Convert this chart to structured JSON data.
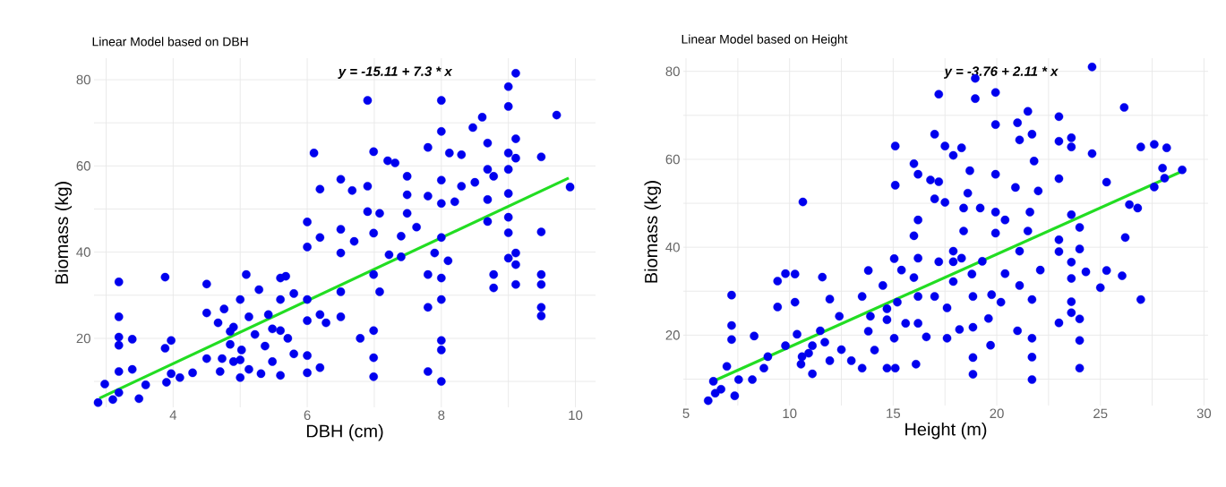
{
  "chart_data": [
    {
      "type": "scatter",
      "title": "Linear Model based on DBH",
      "xlabel": "DBH (cm)",
      "ylabel": "Biomass (kg)",
      "annotations": [
        "y = -15.11 + 7.3 * x"
      ],
      "grid": true,
      "xlim": [
        2.82,
        10.3
      ],
      "ylim": [
        4,
        85
      ],
      "xticks": [
        {
          "value": 3,
          "label": null
        },
        4,
        {
          "value": 5,
          "label": null
        },
        6,
        {
          "value": 7,
          "label": null
        },
        8,
        {
          "value": 9,
          "label": null
        },
        10
      ],
      "yticks": [
        {
          "value": 10,
          "label": null
        },
        20,
        {
          "value": 30,
          "label": null
        },
        40,
        {
          "value": 50,
          "label": null
        },
        60,
        {
          "value": 70,
          "label": null
        },
        80
      ],
      "series": [
        {
          "marker": "circle",
          "color": "#0000ee",
          "x": [
            2.88,
            2.98,
            3.1,
            3.19,
            3.19,
            3.19,
            3.19,
            3.19,
            3.19,
            3.39,
            3.39,
            3.49,
            3.59,
            3.88,
            3.88,
            3.97,
            3.97,
            3.9,
            4.1,
            4.29,
            4.5,
            4.5,
            4.5,
            4.67,
            4.7,
            4.76,
            4.85,
            4.9,
            5,
            5,
            5,
            5.09,
            5.13,
            5.22,
            5.28,
            5.31,
            5.42,
            5.48,
            5.6,
            5.6,
            5.6,
            5.68,
            5.71,
            5.8,
            5.8,
            6,
            6,
            6,
            6,
            6,
            6,
            6.1,
            6.19,
            6.19,
            6.19,
            6.19,
            6.28,
            6.5,
            6.5,
            6.5,
            6.5,
            6.5,
            6.67,
            6.7,
            6.79,
            6.9,
            6.9,
            6.9,
            6.99,
            6.99,
            6.99,
            6.99,
            6.99,
            6.99,
            7.08,
            7.08,
            7.2,
            7.31,
            7.22,
            7.49,
            7.49,
            7.4,
            7.4,
            7.49,
            7.63,
            7.8,
            7.8,
            7.8,
            7.8,
            7.8,
            7.9,
            8,
            8,
            8,
            8,
            8,
            8,
            8,
            8,
            8,
            8,
            8.12,
            8.1,
            8.2,
            8.3,
            8.3,
            8.5,
            8.47,
            8.61,
            8.69,
            8.69,
            8.69,
            8.69,
            8.78,
            8.78,
            8.78,
            9,
            9,
            9,
            9,
            9,
            9,
            9,
            9,
            9.11,
            9.11,
            9.11,
            9.11,
            9.11,
            9.11,
            9.49,
            9.49,
            9.49,
            9.49,
            9.49,
            9.49,
            9.72,
            9.92,
            4.9,
            5.02,
            5.13,
            5.37,
            5.48,
            5.6,
            4.73,
            4.85
          ],
          "values": [
            5.1,
            9.4,
            5.8,
            33.1,
            25,
            20.3,
            18.4,
            12.3,
            7.4,
            19.8,
            12.8,
            6,
            9.2,
            34.2,
            17.7,
            19.5,
            11.8,
            9.8,
            10.9,
            12,
            32.6,
            25.9,
            15.3,
            23.6,
            12.3,
            26.8,
            18.6,
            22.6,
            29,
            10.9,
            15,
            34.8,
            25,
            20.9,
            31.3,
            11.8,
            25.5,
            14.6,
            34,
            11.4,
            29,
            34.4,
            20,
            30.4,
            16.4,
            47,
            41.2,
            29,
            24.1,
            16,
            12,
            63,
            43.4,
            54.6,
            25.5,
            13.2,
            23.6,
            56.9,
            45.3,
            39.8,
            30.8,
            25,
            54.3,
            42.5,
            20,
            75.2,
            55.3,
            49.4,
            63.3,
            44.4,
            34.8,
            21.8,
            15.5,
            11.1,
            49,
            30.8,
            61.2,
            60.7,
            39.4,
            57.6,
            53.3,
            43.7,
            38.9,
            49,
            45.8,
            64.3,
            53,
            34.8,
            27.2,
            12.3,
            39.8,
            75.2,
            68,
            56.7,
            51.3,
            43.4,
            34,
            29,
            19.5,
            17.3,
            10,
            63,
            38,
            51.7,
            62.6,
            55.3,
            56.2,
            68.9,
            71.3,
            65.3,
            52.2,
            47.1,
            59.2,
            57.6,
            34.8,
            31.7,
            78.4,
            73.8,
            63,
            59.2,
            53.6,
            48.1,
            44.5,
            38.6,
            81.5,
            66.3,
            61.8,
            39.8,
            37.1,
            32.5,
            62.1,
            44.7,
            34.8,
            32.5,
            27.2,
            25.2,
            71.8,
            55.1,
            14.6,
            17.3,
            12.8,
            18.2,
            22.2,
            21.8,
            15.3,
            21.6
          ]
        },
        {
          "type": "line",
          "color": "#22dd22",
          "x": [
            2.9,
            9.9
          ],
          "values": [
            6.1,
            57.2
          ]
        }
      ]
    },
    {
      "type": "scatter",
      "title": "Linear Model based on Height",
      "xlabel": "Height (m)",
      "ylabel": "Biomass (kg)",
      "annotations": [
        "y = -3.76 + 2.11 * x"
      ],
      "grid": true,
      "xlim": [
        4.87,
        30.2
      ],
      "ylim": [
        4,
        83
      ],
      "xticks": [
        5,
        {
          "value": 7.5,
          "label": null
        },
        10,
        {
          "value": 12.5,
          "label": null
        },
        15,
        {
          "value": 17.5,
          "label": null
        },
        20,
        {
          "value": 22.5,
          "label": null
        },
        25,
        {
          "value": 27.5,
          "label": null
        },
        30
      ],
      "yticks": [
        {
          "value": 10,
          "label": null
        },
        20,
        {
          "value": 30,
          "label": null
        },
        40,
        {
          "value": 50,
          "label": null
        },
        60,
        {
          "value": 70,
          "label": null
        },
        80
      ],
      "series": [
        {
          "marker": "circle",
          "color": "#0000ee",
          "x": [
            6.07,
            6.41,
            6.69,
            6.32,
            7.35,
            7.2,
            7.2,
            7.2,
            6.97,
            7.54,
            8.29,
            8.2,
            8.76,
            8.95,
            9.42,
            9.42,
            9.8,
            9.8,
            10.26,
            10.26,
            10.64,
            10.55,
            10.36,
            10.92,
            11.1,
            11.58,
            11.48,
            11.94,
            11.94,
            12.4,
            12.5,
            12.98,
            13.5,
            13.5,
            13.8,
            13.8,
            14.1,
            14.5,
            14.7,
            14.7,
            15.1,
            15.1,
            15.05,
            15.05,
            15.1,
            15.4,
            15.6,
            16,
            16,
            16,
            16.1,
            16.2,
            16.2,
            16.2,
            16.2,
            16.2,
            16.6,
            17,
            16.8,
            17,
            17,
            17.2,
            17.2,
            17.2,
            17.5,
            17.5,
            17.6,
            17.6,
            17.9,
            18.3,
            17.9,
            17.9,
            18.2,
            18.4,
            18.4,
            18.6,
            18.7,
            18.8,
            18.85,
            18.85,
            18.85,
            18.85,
            18.96,
            18.96,
            19.2,
            19.3,
            19.6,
            19.7,
            19.75,
            19.94,
            19.94,
            19.94,
            19.94,
            19.94,
            20.2,
            20.4,
            20.4,
            20.9,
            21,
            21,
            21.1,
            21.1,
            21.1,
            21.5,
            21.5,
            21.6,
            21.7,
            21.8,
            21.7,
            21.7,
            21.7,
            21.7,
            22,
            22.1,
            23,
            23,
            23,
            23,
            23,
            23,
            23.6,
            23.6,
            23.6,
            23.6,
            23.6,
            23.6,
            23.6,
            24,
            24,
            24,
            24,
            24,
            24.3,
            24.6,
            24.6,
            25,
            25.3,
            25.3,
            26.05,
            26.15,
            26.2,
            26.4,
            26.8,
            26.95,
            26.95,
            27.6,
            27.6,
            28,
            28.1,
            28.2,
            28.95,
            10.6,
            11.1,
            11.7,
            13.9,
            14.7,
            15.2,
            17.9,
            18.3
          ],
          "values": [
            5.1,
            6.8,
            7.7,
            9.5,
            6.2,
            29.1,
            22.2,
            19,
            12.9,
            9.9,
            19.8,
            9.9,
            12.5,
            15.1,
            32.3,
            26.4,
            34,
            17.6,
            33.9,
            27.5,
            50.3,
            13.4,
            20.2,
            15.9,
            11.2,
            33.2,
            21,
            28.2,
            14.2,
            24.3,
            16.7,
            14.2,
            28.8,
            12.5,
            34.7,
            20.9,
            16.6,
            31.3,
            23.5,
            12.5,
            63,
            54.1,
            37.4,
            19.3,
            12.5,
            34.8,
            22.7,
            59,
            42.6,
            33.1,
            13.4,
            56.6,
            46.2,
            37.5,
            28.8,
            22.7,
            19.6,
            65.7,
            55.3,
            51,
            28.8,
            74.8,
            54.9,
            36.7,
            63,
            50.2,
            26.2,
            19.3,
            60.9,
            62.6,
            39.1,
            32.2,
            21.3,
            48.9,
            43.7,
            52.3,
            57.4,
            33.9,
            28.8,
            21.8,
            14.9,
            11.1,
            78.4,
            73.8,
            48.9,
            36.8,
            23.8,
            17.7,
            29.2,
            75.2,
            67.9,
            56.6,
            48,
            43.2,
            27.5,
            46.2,
            34,
            53.6,
            21,
            68.3,
            64.4,
            39.1,
            31.3,
            70.9,
            43.7,
            48,
            65.7,
            59.6,
            28.1,
            19.3,
            15,
            9.9,
            52.8,
            34.8,
            69.7,
            64.1,
            55.6,
            41.7,
            39,
            22.8,
            64.9,
            62.8,
            47.4,
            36.6,
            32.9,
            27.6,
            25.1,
            44.5,
            39.6,
            23.7,
            18.8,
            12.5,
            34.4,
            81,
            61.3,
            30.8,
            54.8,
            34.7,
            33.5,
            71.8,
            42.2,
            49.7,
            48.9,
            28.1,
            62.8,
            63.4,
            53.7,
            58,
            55.7,
            62.6,
            57.6,
            15.1,
            17.6,
            18.4,
            24.3,
            26,
            27.5,
            36.7,
            37.5
          ]
        },
        {
          "type": "line",
          "color": "#22dd22",
          "x": [
            6.2,
            29
          ],
          "values": [
            9.3,
            57.4
          ]
        }
      ]
    }
  ]
}
